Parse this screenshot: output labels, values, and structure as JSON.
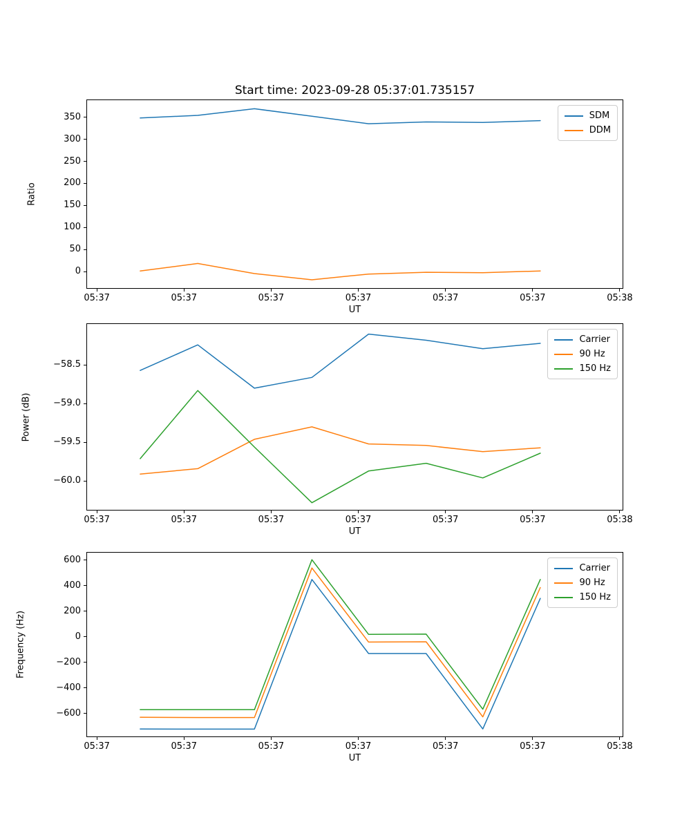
{
  "figure": {
    "background": "#ffffff"
  },
  "palette": {
    "blue": "#1f77b4",
    "orange": "#ff7f0e",
    "green": "#2ca02c"
  },
  "chart_data": [
    {
      "type": "line",
      "title": "Start time: 2023-09-28 05:37:01.735157",
      "xlabel": "UT",
      "ylabel": "Ratio",
      "grid": false,
      "legend_position": "upper right",
      "x_seconds": [
        4.9,
        11.5,
        18.0,
        24.6,
        31.1,
        37.7,
        44.2,
        50.8
      ],
      "xlim_seconds": [
        -1.2,
        60.4
      ],
      "xtick_seconds": [
        0,
        10,
        20,
        30,
        40,
        50,
        60
      ],
      "xtick_labels": [
        "05:37",
        "05:37",
        "05:37",
        "05:37",
        "05:37",
        "05:37",
        "05:38"
      ],
      "ylim": [
        -39,
        390.4
      ],
      "yticks": [
        0,
        50,
        100,
        150,
        200,
        250,
        300,
        350
      ],
      "ytick_labels": [
        "0",
        "50",
        "100",
        "150",
        "200",
        "250",
        "300",
        "350"
      ],
      "series": [
        {
          "name": "SDM",
          "color": "#1f77b4",
          "values": [
            350,
            356,
            371,
            354,
            337,
            341,
            340,
            344
          ]
        },
        {
          "name": "DDM",
          "color": "#ff7f0e",
          "values": [
            3,
            20,
            -3,
            -17,
            -4,
            0,
            -1,
            3
          ]
        }
      ]
    },
    {
      "type": "line",
      "title": "",
      "xlabel": "UT",
      "ylabel": "Power (dB)",
      "grid": false,
      "legend_position": "upper right",
      "x_seconds": [
        4.9,
        11.5,
        18.0,
        24.6,
        31.1,
        37.7,
        44.2,
        50.8
      ],
      "xlim_seconds": [
        -1.2,
        60.4
      ],
      "xtick_seconds": [
        0,
        10,
        20,
        30,
        40,
        50,
        60
      ],
      "xtick_labels": [
        "05:37",
        "05:37",
        "05:37",
        "05:37",
        "05:37",
        "05:37",
        "05:38"
      ],
      "ylim": [
        -60.38,
        -57.96
      ],
      "yticks": [
        -58.5,
        -59.0,
        -59.5,
        -60.0
      ],
      "ytick_labels": [
        "−58.5",
        "−59.0",
        "−59.5",
        "−60.0"
      ],
      "series": [
        {
          "name": "Carrier",
          "color": "#1f77b4",
          "values": [
            -58.56,
            -58.23,
            -58.79,
            -58.65,
            -58.09,
            -58.17,
            -58.28,
            -58.21
          ]
        },
        {
          "name": "90 Hz",
          "color": "#ff7f0e",
          "values": [
            -59.9,
            -59.83,
            -59.45,
            -59.29,
            -59.51,
            -59.53,
            -59.61,
            -59.56
          ]
        },
        {
          "name": "150 Hz",
          "color": "#2ca02c",
          "values": [
            -59.7,
            -58.82,
            -59.55,
            -60.27,
            -59.86,
            -59.76,
            -59.95,
            -59.63
          ]
        }
      ]
    },
    {
      "type": "line",
      "title": "",
      "xlabel": "UT",
      "ylabel": "Frequency (Hz)",
      "grid": false,
      "legend_position": "upper right",
      "x_seconds": [
        4.9,
        11.5,
        18.0,
        24.6,
        31.1,
        37.7,
        44.2,
        50.8
      ],
      "xlim_seconds": [
        -1.2,
        60.4
      ],
      "xtick_seconds": [
        0,
        10,
        20,
        30,
        40,
        50,
        60
      ],
      "xtick_labels": [
        "05:37",
        "05:37",
        "05:37",
        "05:37",
        "05:37",
        "05:37",
        "05:38"
      ],
      "ylim": [
        -786,
        664
      ],
      "yticks": [
        600,
        400,
        200,
        0,
        -200,
        -400,
        -600
      ],
      "ytick_labels": [
        "600",
        "400",
        "200",
        "0",
        "−200",
        "−400",
        "−600"
      ],
      "series": [
        {
          "name": "Carrier",
          "color": "#1f77b4",
          "values": [
            -717,
            -718,
            -718,
            454,
            -126,
            -126,
            -717,
            306
          ]
        },
        {
          "name": "90 Hz",
          "color": "#ff7f0e",
          "values": [
            -625,
            -627,
            -627,
            544,
            -36,
            -34,
            -622,
            391
          ]
        },
        {
          "name": "150 Hz",
          "color": "#2ca02c",
          "values": [
            -565,
            -566,
            -566,
            609,
            24,
            26,
            -562,
            454
          ]
        }
      ]
    }
  ]
}
